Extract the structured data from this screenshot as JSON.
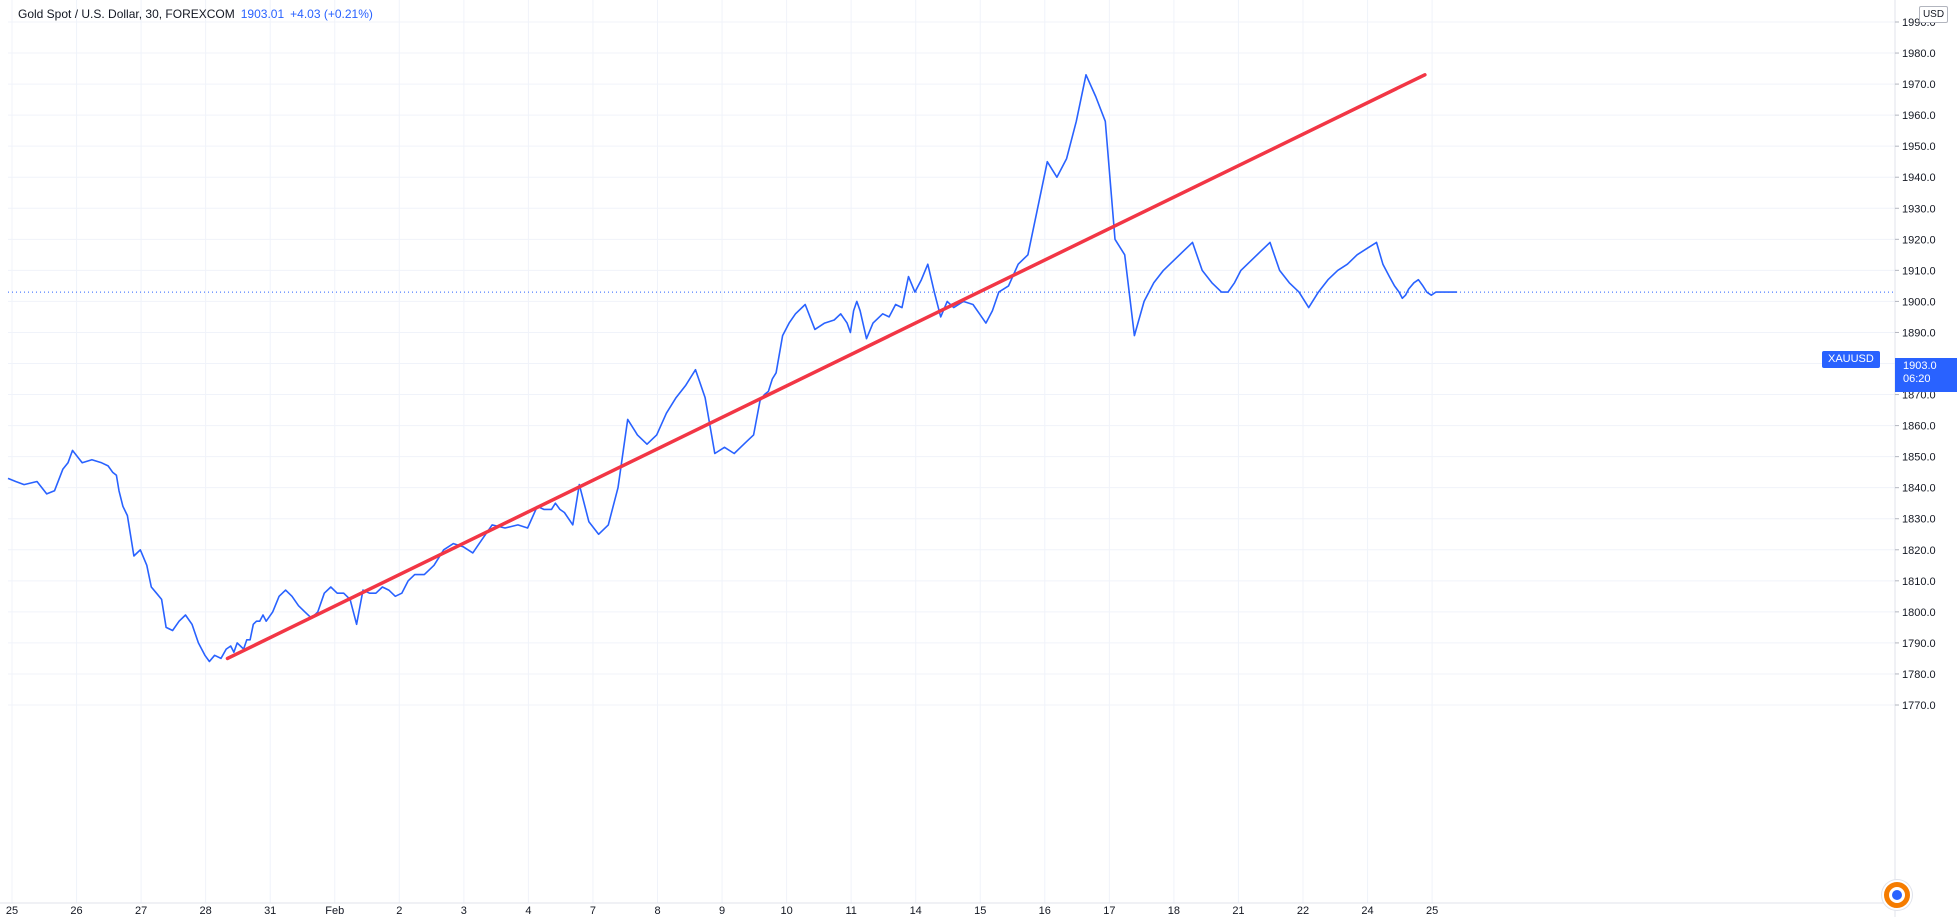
{
  "header": {
    "title": "Gold Spot / U.S. Dollar, 30, FOREXCOM",
    "last_price": "1903.01",
    "change": "+4.03 (+0.21%)"
  },
  "currency_label": "USD",
  "last_price_tag": {
    "symbol": "XAUUSD",
    "price": "1903.0",
    "countdown": "06:20"
  },
  "colors": {
    "series": "#2962ff",
    "trendline": "#f23645",
    "grid": "#f0f3fa",
    "axis_text": "#131722",
    "accent": "#2962ff"
  },
  "logo_icon": "tradingview-logo-icon",
  "chart_data": {
    "type": "line",
    "ylim": [
      1763,
      1993
    ],
    "y_ticks": [
      1770,
      1780,
      1790,
      1800,
      1810,
      1820,
      1830,
      1840,
      1850,
      1860,
      1870,
      1880,
      1890,
      1900,
      1910,
      1920,
      1930,
      1940,
      1950,
      1960,
      1970,
      1980,
      1990
    ],
    "y_tick_labels": [
      "1770.0",
      "1780.0",
      "1790.0",
      "1800.0",
      "1810.0",
      "1820.0",
      "1830.0",
      "1840.0",
      "1850.0",
      "1860.0",
      "1870.0",
      "1880.0",
      "1890.0",
      "1900.0",
      "1910.0",
      "1920.0",
      "1930.0",
      "1940.0",
      "1950.0",
      "1960.0",
      "1970.0",
      "1980.0",
      "1990.0"
    ],
    "x_labels": [
      "25",
      "26",
      "27",
      "28",
      "31",
      "Feb",
      "2",
      "3",
      "4",
      "7",
      "8",
      "9",
      "10",
      "11",
      "14",
      "15",
      "16",
      "17",
      "18",
      "21",
      "22",
      "24",
      "25"
    ],
    "grid": true,
    "series": [
      {
        "x": [
          0,
          0.12,
          0.25,
          0.45,
          0.6,
          0.72,
          0.85,
          0.93,
          1.0,
          1.15,
          1.3,
          1.45,
          1.55,
          1.62,
          1.68,
          1.72,
          1.78,
          1.85,
          1.95,
          2.05,
          2.15,
          2.22,
          2.3,
          2.38,
          2.45,
          2.55,
          2.65,
          2.75,
          2.85,
          2.95,
          3.05,
          3.12,
          3.2,
          3.3,
          3.38,
          3.45,
          3.5,
          3.55,
          3.6,
          3.65,
          3.7,
          3.75,
          3.8,
          3.85,
          3.9,
          3.95,
          4.0,
          4.1,
          4.2,
          4.3,
          4.4,
          4.5,
          4.6,
          4.7,
          4.8,
          4.9,
          5.0,
          5.1,
          5.2,
          5.3,
          5.4,
          5.5,
          5.6,
          5.7,
          5.8,
          5.9,
          6.0,
          6.1,
          6.2,
          6.3,
          6.45,
          6.6,
          6.75,
          6.9,
          7.05,
          7.2,
          7.3,
          7.5,
          7.7,
          7.9,
          8.05,
          8.2,
          8.3,
          8.42,
          8.48,
          8.55,
          8.62,
          8.75,
          8.85,
          9.0,
          9.15,
          9.3,
          9.45,
          9.6,
          9.75,
          9.9,
          10.05,
          10.2,
          10.35,
          10.5,
          10.65,
          10.8,
          10.95,
          11.1,
          11.25,
          11.35,
          11.45,
          11.55,
          11.65,
          11.72,
          11.78,
          11.84,
          11.9,
          12.0,
          12.1,
          12.2,
          12.35,
          12.5,
          12.65,
          12.8,
          12.9,
          13.0,
          13.05,
          13.1,
          13.15,
          13.2,
          13.3,
          13.4,
          13.55,
          13.65,
          13.75,
          13.85,
          13.95,
          14.05,
          14.15,
          14.25,
          14.35,
          14.45,
          14.55,
          14.65,
          14.8,
          14.95,
          15.05,
          15.15,
          15.25,
          15.35,
          15.5,
          15.65,
          15.8,
          15.95,
          16.1,
          16.25,
          16.4,
          16.55,
          16.7,
          16.85,
          17.0,
          17.15,
          17.3,
          17.45,
          17.6,
          17.75,
          17.9,
          18.05,
          18.2,
          18.35,
          18.5,
          18.65,
          18.8,
          18.9,
          19.0,
          19.1,
          19.25,
          19.4,
          19.55,
          19.7,
          19.85,
          20.0,
          20.15,
          20.3,
          20.45,
          20.6,
          20.75,
          20.9,
          21.05,
          21.2,
          21.3,
          21.4,
          21.48,
          21.55,
          21.6,
          21.65,
          21.7,
          21.78,
          21.85,
          21.92,
          21.98,
          22.05,
          22.12,
          22.2,
          22.28,
          22.36,
          22.45
        ],
        "values": [
          1843,
          1842,
          1841,
          1842,
          1838,
          1839,
          1846,
          1848,
          1852,
          1848,
          1849,
          1848,
          1847,
          1845,
          1844,
          1839,
          1834,
          1831,
          1818,
          1820,
          1815,
          1808,
          1806,
          1804,
          1795,
          1794,
          1797,
          1799,
          1796,
          1790,
          1786,
          1784,
          1786,
          1785,
          1788,
          1789,
          1787,
          1790,
          1789,
          1788,
          1791,
          1791,
          1796,
          1797,
          1797,
          1799,
          1797,
          1800,
          1805,
          1807,
          1805,
          1802,
          1800,
          1798,
          1800,
          1806,
          1808,
          1806,
          1806,
          1804,
          1796,
          1807,
          1806,
          1806,
          1808,
          1807,
          1805,
          1806,
          1810,
          1812,
          1812,
          1815,
          1820,
          1822,
          1821,
          1819,
          1822,
          1828,
          1827,
          1828,
          1827,
          1834,
          1833,
          1833,
          1835,
          1833,
          1832,
          1828,
          1841,
          1829,
          1825,
          1828,
          1840,
          1862,
          1857,
          1854,
          1857,
          1864,
          1869,
          1873,
          1878,
          1869,
          1851,
          1853,
          1851,
          1853,
          1855,
          1857,
          1868,
          1870,
          1871,
          1875,
          1877,
          1889,
          1893,
          1896,
          1899,
          1891,
          1893,
          1894,
          1896,
          1893,
          1890,
          1897,
          1900,
          1897,
          1888,
          1893,
          1896,
          1895,
          1899,
          1898,
          1908,
          1903,
          1907,
          1912,
          1903,
          1895,
          1900,
          1898,
          1900,
          1899,
          1896,
          1893,
          1897,
          1903,
          1905,
          1912,
          1915,
          1930,
          1945,
          1940,
          1946,
          1958,
          1973,
          1966,
          1958,
          1920,
          1915,
          1889,
          1900,
          1906,
          1910,
          1913,
          1916,
          1919,
          1910,
          1906,
          1903,
          1903,
          1906,
          1910,
          1913,
          1916,
          1919,
          1910,
          1906,
          1903,
          1898,
          1903,
          1907,
          1910,
          1912,
          1915,
          1917,
          1919,
          1912,
          1908,
          1905,
          1903,
          1901,
          1902,
          1904,
          1906,
          1907,
          1905,
          1903,
          1902,
          1903,
          1903,
          1903,
          1903,
          1903
        ]
      }
    ],
    "trendline": {
      "x": [
        3.4,
        21.95
      ],
      "y": [
        1785,
        1973
      ]
    },
    "current_price_line": 1903.01
  }
}
